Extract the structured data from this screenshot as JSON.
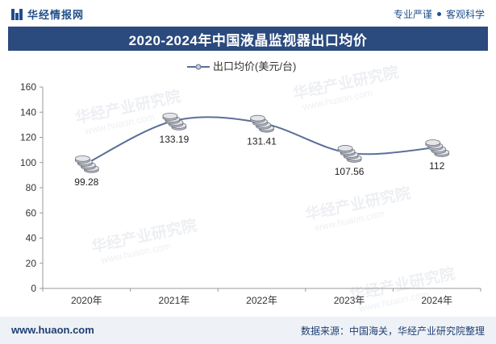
{
  "header": {
    "brand": "华经情报网",
    "tagline_left": "专业严谨",
    "tagline_right": "客观科学"
  },
  "footer": {
    "site": "www.huaon.com",
    "source": "数据来源：中国海关，华经产业研究院整理"
  },
  "watermark": {
    "cn": "华经产业研究院",
    "en": "www.huaon.com"
  },
  "colors": {
    "brand": "#1f4e8c",
    "title_bar": "#2b4a7e",
    "line": "#5b6f9a",
    "footer_bg": "#eef1f5"
  },
  "chart_data": {
    "type": "line",
    "title": "2020-2024年中国液晶监视器出口均价",
    "categories": [
      "2020年",
      "2021年",
      "2022年",
      "2023年",
      "2024年"
    ],
    "series": [
      {
        "name": "出口均价(美元/台)",
        "values": [
          99.28,
          133.19,
          131.41,
          107.56,
          112
        ]
      }
    ],
    "data_labels": [
      "99.28",
      "133.19",
      "131.41",
      "107.56",
      "112"
    ],
    "ylim": [
      0,
      160
    ],
    "yticks": [
      0,
      20,
      40,
      60,
      80,
      100,
      120,
      140,
      160
    ],
    "legend_position": "top-center",
    "grid": false,
    "smooth": true
  }
}
